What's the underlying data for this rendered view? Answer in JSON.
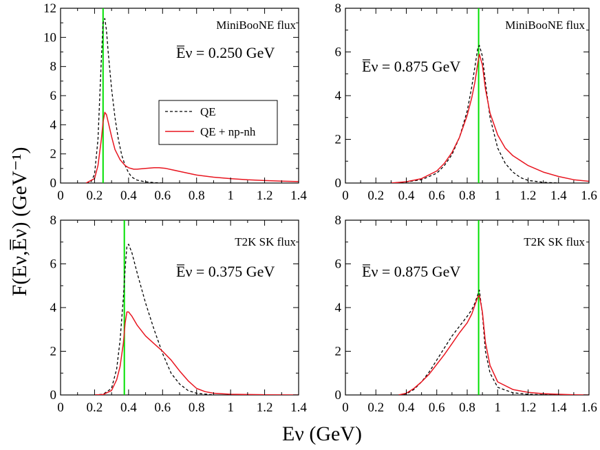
{
  "colors": {
    "qe": "#000000",
    "npnh": "#e8141e",
    "vline": "#00e000"
  },
  "y_axis_label": "F(Eν,E̅ν) (GeV⁻¹)",
  "x_axis_label": "Eν (GeV)",
  "legend": {
    "qe": "QE",
    "npnh": "QE + np-nh"
  },
  "chart_data": [
    {
      "type": "line",
      "panel": "top-left",
      "flux_label": "MiniBooNE flux",
      "mean_energy_label": "E̅ν = 0.250 GeV",
      "mean_energy": 0.25,
      "xlim": [
        0,
        1.4
      ],
      "ylim": [
        0,
        12
      ],
      "xticks": [
        "0",
        "0.2",
        "0.4",
        "0.6",
        "0.8",
        "1",
        "1.2",
        "1.4"
      ],
      "yticks": [
        "0",
        "2",
        "4",
        "6",
        "8",
        "10",
        "12"
      ],
      "series": [
        {
          "name": "QE",
          "style": "dashed",
          "x": [
            0.15,
            0.18,
            0.2,
            0.22,
            0.24,
            0.25,
            0.26,
            0.27,
            0.28,
            0.3,
            0.32,
            0.34,
            0.36,
            0.38,
            0.4,
            0.42,
            0.45,
            0.5,
            0.55,
            0.6
          ],
          "y": [
            0,
            0.1,
            0.6,
            3.0,
            8.5,
            11.0,
            11.3,
            10.5,
            9.0,
            6.5,
            4.5,
            3.0,
            1.9,
            1.2,
            0.7,
            0.4,
            0.2,
            0.08,
            0.03,
            0
          ]
        },
        {
          "name": "QE + np-nh",
          "style": "solid",
          "x": [
            0.15,
            0.2,
            0.22,
            0.24,
            0.25,
            0.26,
            0.27,
            0.28,
            0.3,
            0.32,
            0.35,
            0.38,
            0.4,
            0.43,
            0.45,
            0.5,
            0.55,
            0.58,
            0.62,
            0.7,
            0.8,
            0.9,
            1.0,
            1.1,
            1.2,
            1.3,
            1.4
          ],
          "y": [
            0,
            0.3,
            1.2,
            3.0,
            4.2,
            4.85,
            4.7,
            4.2,
            3.2,
            2.3,
            1.6,
            1.2,
            1.05,
            0.95,
            0.95,
            1.0,
            1.05,
            1.05,
            1.0,
            0.8,
            0.55,
            0.4,
            0.3,
            0.22,
            0.17,
            0.13,
            0.1
          ]
        }
      ]
    },
    {
      "type": "line",
      "panel": "top-right",
      "flux_label": "MiniBooNE flux",
      "mean_energy_label": "E̅ν = 0.875 GeV",
      "mean_energy": 0.875,
      "xlim": [
        0,
        1.6
      ],
      "ylim": [
        0,
        8
      ],
      "xticks": [
        "0",
        "0.2",
        "0.4",
        "0.6",
        "0.8",
        "1",
        "1.2",
        "1.4",
        "1.6"
      ],
      "yticks": [
        "0",
        "2",
        "4",
        "6",
        "8"
      ],
      "series": [
        {
          "name": "QE",
          "style": "dashed",
          "x": [
            0.3,
            0.4,
            0.5,
            0.6,
            0.65,
            0.7,
            0.75,
            0.8,
            0.83,
            0.85,
            0.87,
            0.88,
            0.9,
            0.92,
            0.95,
            1.0,
            1.05,
            1.1,
            1.15,
            1.2,
            1.3,
            1.4
          ],
          "y": [
            0,
            0.05,
            0.15,
            0.45,
            0.8,
            1.3,
            2.1,
            3.3,
            4.4,
            5.3,
            6.2,
            6.3,
            5.8,
            4.6,
            3.0,
            1.6,
            0.9,
            0.5,
            0.25,
            0.12,
            0.03,
            0
          ]
        },
        {
          "name": "QE + np-nh",
          "style": "solid",
          "x": [
            0.3,
            0.4,
            0.5,
            0.6,
            0.65,
            0.7,
            0.75,
            0.8,
            0.83,
            0.85,
            0.87,
            0.88,
            0.9,
            0.92,
            0.95,
            1.0,
            1.05,
            1.1,
            1.2,
            1.3,
            1.4,
            1.5,
            1.6
          ],
          "y": [
            0,
            0.06,
            0.2,
            0.55,
            0.9,
            1.4,
            2.1,
            3.1,
            3.9,
            4.6,
            5.5,
            5.9,
            5.4,
            4.3,
            3.2,
            2.2,
            1.6,
            1.25,
            0.8,
            0.5,
            0.3,
            0.15,
            0.08
          ]
        }
      ]
    },
    {
      "type": "line",
      "panel": "bottom-left",
      "flux_label": "T2K SK flux",
      "mean_energy_label": "E̅ν = 0.375 GeV",
      "mean_energy": 0.375,
      "xlim": [
        0,
        1.4
      ],
      "ylim": [
        0,
        8
      ],
      "xticks": [
        "0",
        "0.2",
        "0.4",
        "0.6",
        "0.8",
        "1",
        "1.2",
        "1.4"
      ],
      "yticks": [
        "0",
        "2",
        "4",
        "6",
        "8"
      ],
      "series": [
        {
          "name": "QE",
          "style": "dashed",
          "x": [
            0.2,
            0.25,
            0.3,
            0.33,
            0.35,
            0.37,
            0.38,
            0.39,
            0.4,
            0.42,
            0.45,
            0.5,
            0.55,
            0.6,
            0.65,
            0.7,
            0.75,
            0.8,
            0.9
          ],
          "y": [
            0,
            0.03,
            0.3,
            1.2,
            2.5,
            4.5,
            5.8,
            6.8,
            6.9,
            6.5,
            5.6,
            4.2,
            3.0,
            1.9,
            1.0,
            0.5,
            0.2,
            0.08,
            0
          ]
        },
        {
          "name": "QE + np-nh",
          "style": "solid",
          "x": [
            0.2,
            0.25,
            0.3,
            0.33,
            0.35,
            0.37,
            0.38,
            0.39,
            0.4,
            0.42,
            0.45,
            0.5,
            0.55,
            0.6,
            0.65,
            0.7,
            0.75,
            0.8,
            0.85,
            0.9,
            1.0,
            1.2,
            1.4
          ],
          "y": [
            0,
            0.02,
            0.2,
            0.7,
            1.3,
            2.4,
            3.3,
            3.8,
            3.8,
            3.6,
            3.2,
            2.7,
            2.35,
            2.0,
            1.6,
            1.1,
            0.65,
            0.3,
            0.15,
            0.08,
            0.03,
            0.01,
            0
          ]
        }
      ]
    },
    {
      "type": "line",
      "panel": "bottom-right",
      "flux_label": "T2K SK flux",
      "mean_energy_label": "E̅ν = 0.875 GeV",
      "mean_energy": 0.875,
      "xlim": [
        0,
        1.6
      ],
      "ylim": [
        0,
        8
      ],
      "xticks": [
        "0",
        "0.2",
        "0.4",
        "0.6",
        "0.8",
        "1",
        "1.2",
        "1.4",
        "1.6"
      ],
      "yticks": [
        "0",
        "2",
        "4",
        "6",
        "8"
      ],
      "series": [
        {
          "name": "QE",
          "style": "dashed",
          "x": [
            0.35,
            0.4,
            0.45,
            0.5,
            0.55,
            0.6,
            0.65,
            0.7,
            0.75,
            0.8,
            0.83,
            0.85,
            0.87,
            0.88,
            0.9,
            0.92,
            0.95,
            1.0,
            1.1,
            1.2,
            1.3,
            1.4
          ],
          "y": [
            0,
            0.05,
            0.25,
            0.6,
            1.05,
            1.6,
            2.15,
            2.7,
            3.15,
            3.6,
            3.9,
            4.2,
            4.6,
            4.8,
            3.7,
            2.0,
            1.0,
            0.35,
            0.1,
            0.03,
            0.01,
            0
          ]
        },
        {
          "name": "QE + np-nh",
          "style": "solid",
          "x": [
            0.35,
            0.4,
            0.45,
            0.5,
            0.55,
            0.6,
            0.65,
            0.7,
            0.75,
            0.8,
            0.83,
            0.85,
            0.87,
            0.88,
            0.9,
            0.92,
            0.95,
            1.0,
            1.1,
            1.2,
            1.3,
            1.4,
            1.5,
            1.6
          ],
          "y": [
            0,
            0.08,
            0.3,
            0.6,
            0.95,
            1.4,
            1.85,
            2.35,
            2.85,
            3.3,
            3.7,
            4.1,
            4.5,
            4.55,
            3.8,
            2.4,
            1.35,
            0.6,
            0.25,
            0.12,
            0.06,
            0.03,
            0.01,
            0
          ]
        }
      ]
    }
  ]
}
